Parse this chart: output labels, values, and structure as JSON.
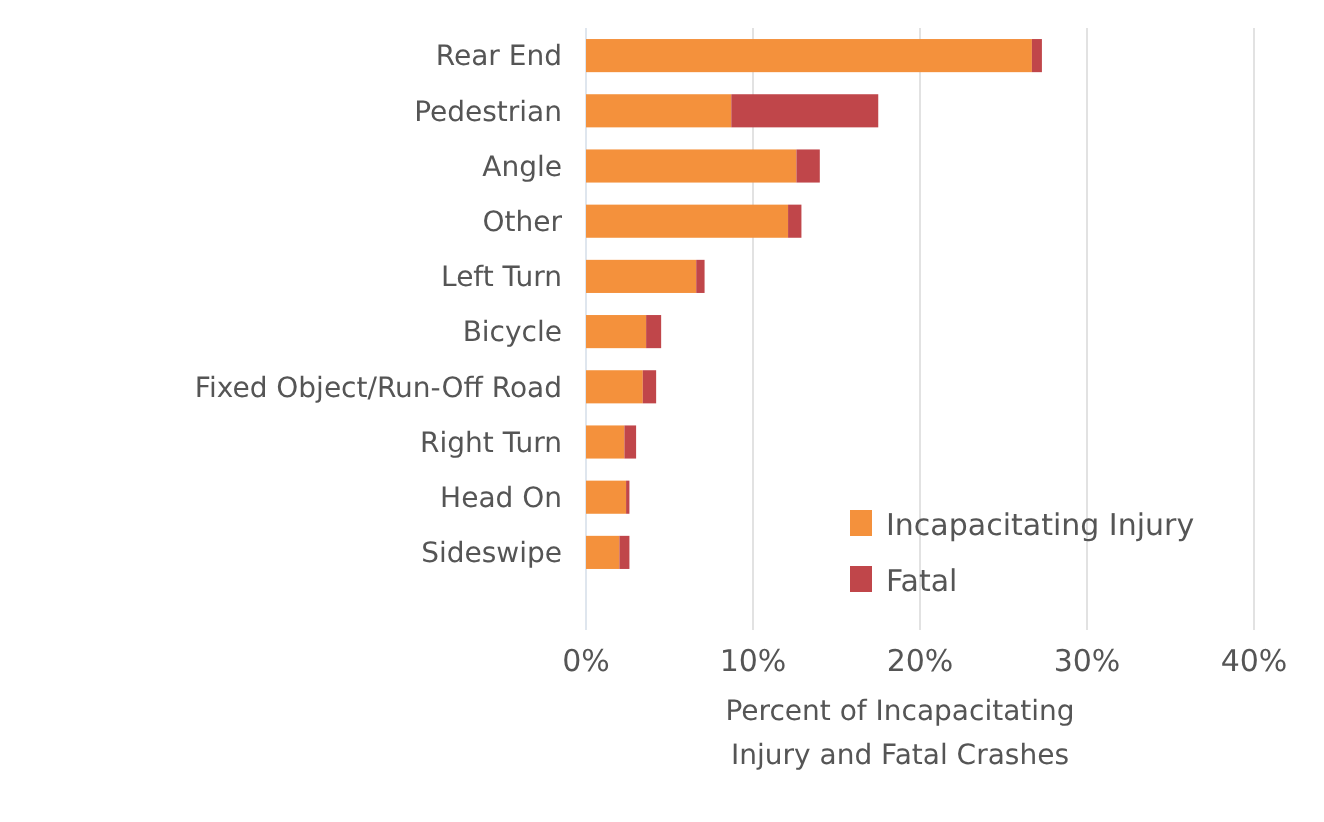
{
  "chart_data": {
    "type": "bar",
    "orientation": "horizontal",
    "stacked": true,
    "categories": [
      "Rear End",
      "Pedestrian",
      "Angle",
      "Other",
      "Left Turn",
      "Bicycle",
      "Fixed Object/Run-Off Road",
      "Right Turn",
      "Head On",
      "Sideswipe"
    ],
    "series": [
      {
        "name": "Incapacitating Injury",
        "color": "#f4913c",
        "values": [
          26.7,
          8.7,
          12.6,
          12.1,
          6.6,
          3.6,
          3.4,
          2.3,
          2.4,
          2.0
        ]
      },
      {
        "name": "Fatal",
        "color": "#c0464a",
        "values": [
          0.6,
          8.8,
          1.4,
          0.8,
          0.5,
          0.9,
          0.8,
          0.7,
          0.2,
          0.6
        ]
      }
    ],
    "xlim": [
      0,
      40
    ],
    "xticks": [
      {
        "value": 0,
        "label": "0%"
      },
      {
        "value": 10,
        "label": "10%"
      },
      {
        "value": 20,
        "label": "20%"
      },
      {
        "value": 30,
        "label": "30%"
      },
      {
        "value": 40,
        "label": "40%"
      }
    ],
    "xlabel": "Percent of Incapacitating Injury and Fatal Crashes",
    "grid": "x",
    "legend": "bottom right"
  }
}
